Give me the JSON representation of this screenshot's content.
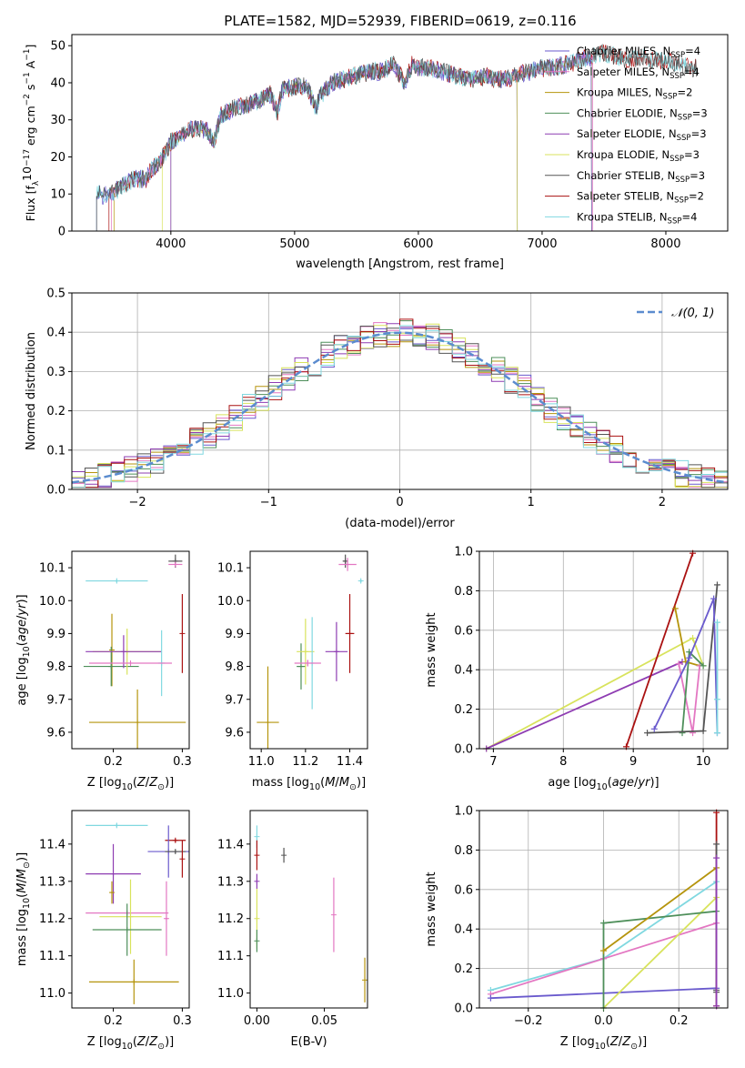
{
  "figure": {
    "title": "PLATE=1582, MJD=52939, FIBERID=0619, z=0.116"
  },
  "colors": {
    "Chabrier MILES": "#6a5acd",
    "Salpeter MILES": "#e377c2",
    "Kroupa MILES": "#b5940c",
    "Chabrier ELODIE": "#4e8f5a",
    "Salpeter ELODIE": "#8e3cb2",
    "Kroupa ELODIE": "#d8e35c",
    "Chabrier STELIB": "#555555",
    "Salpeter STELIB": "#aa1111",
    "Kroupa STELIB": "#80d8e0",
    "gauss": "#5b8ccf"
  },
  "chart_data": [
    {
      "id": "spectrum",
      "type": "line",
      "xlabel": "wavelength [Angstrom, rest frame]",
      "ylabel": "Flux [f_λ10^-17 erg cm^-2 s^-1 A^-1]",
      "xlim": [
        3200,
        8500
      ],
      "ylim": [
        0,
        53
      ],
      "xticks": [
        4000,
        5000,
        6000,
        7000,
        8000
      ],
      "yticks": [
        0,
        10,
        20,
        30,
        40,
        50
      ],
      "legend_position": "right",
      "legend": [
        {
          "label": "Chabrier MILES, N",
          "sub": "SSP",
          "suffix": "=4"
        },
        {
          "label": "Salpeter MILES, N",
          "sub": "SSP",
          "suffix": "=4"
        },
        {
          "label": "Kroupa MILES, N",
          "sub": "SSP",
          "suffix": "=2"
        },
        {
          "label": "Chabrier ELODIE, N",
          "sub": "SSP",
          "suffix": "=3"
        },
        {
          "label": "Salpeter ELODIE, N",
          "sub": "SSP",
          "suffix": "=3"
        },
        {
          "label": "Kroupa ELODIE, N",
          "sub": "SSP",
          "suffix": "=3"
        },
        {
          "label": "Chabrier STELIB, N",
          "sub": "SSP",
          "suffix": "=3"
        },
        {
          "label": "Salpeter STELIB, N",
          "sub": "SSP",
          "suffix": "=2"
        },
        {
          "label": "Kroupa STELIB, N",
          "sub": "SSP",
          "suffix": "=4"
        }
      ],
      "anchors": [
        [
          3400,
          10
        ],
        [
          3500,
          9.5
        ],
        [
          3600,
          12
        ],
        [
          3700,
          14
        ],
        [
          3800,
          14
        ],
        [
          3850,
          17
        ],
        [
          3900,
          18
        ],
        [
          3950,
          21
        ],
        [
          4000,
          24
        ],
        [
          4100,
          26
        ],
        [
          4200,
          28
        ],
        [
          4300,
          27
        ],
        [
          4350,
          24
        ],
        [
          4400,
          31
        ],
        [
          4500,
          33
        ],
        [
          4600,
          34
        ],
        [
          4700,
          35
        ],
        [
          4800,
          37
        ],
        [
          4860,
          32
        ],
        [
          4900,
          38
        ],
        [
          5000,
          39
        ],
        [
          5100,
          39
        ],
        [
          5175,
          33
        ],
        [
          5200,
          36
        ],
        [
          5300,
          40
        ],
        [
          5400,
          41
        ],
        [
          5500,
          42
        ],
        [
          5600,
          43
        ],
        [
          5700,
          43
        ],
        [
          5800,
          45
        ],
        [
          5890,
          40
        ],
        [
          5950,
          45
        ],
        [
          6000,
          44
        ],
        [
          6100,
          44
        ],
        [
          6200,
          43
        ],
        [
          6300,
          42
        ],
        [
          6400,
          41
        ],
        [
          6500,
          41
        ],
        [
          6560,
          42
        ],
        [
          6600,
          41
        ],
        [
          6700,
          41
        ],
        [
          6800,
          42
        ],
        [
          6900,
          43
        ],
        [
          7000,
          44
        ],
        [
          7100,
          44
        ],
        [
          7200,
          45
        ],
        [
          7300,
          46
        ],
        [
          7400,
          47
        ],
        [
          7500,
          48
        ],
        [
          7600,
          47
        ],
        [
          7700,
          46
        ],
        [
          7800,
          47
        ],
        [
          7900,
          46
        ],
        [
          8000,
          46
        ],
        [
          8100,
          45
        ],
        [
          8200,
          44
        ]
      ],
      "series_ranges": {
        "Chabrier MILES": [
          3400,
          7400
        ],
        "Salpeter MILES": [
          3520,
          7410
        ],
        "Kroupa MILES": [
          3540,
          7400
        ],
        "Chabrier ELODIE": [
          4000,
          6800
        ],
        "Salpeter ELODIE": [
          4000,
          6800
        ],
        "Kroupa ELODIE": [
          3930,
          6800
        ],
        "Chabrier STELIB": [
          3400,
          8250
        ],
        "Salpeter STELIB": [
          3500,
          8250
        ],
        "Kroupa STELIB": [
          3400,
          8250
        ]
      }
    },
    {
      "id": "residuals",
      "type": "line",
      "xlabel": "(data-model)/error",
      "ylabel": "Normed distribution",
      "xlim": [
        -2.5,
        2.5
      ],
      "ylim": [
        0,
        0.5
      ],
      "xticks": [
        -2,
        -1,
        0,
        1,
        2
      ],
      "xticklabels": [
        "−2",
        "−1",
        "0",
        "1",
        "2"
      ],
      "yticks": [
        0.0,
        0.1,
        0.2,
        0.3,
        0.4,
        0.5
      ],
      "yticklabels": [
        "0.0",
        "0.1",
        "0.2",
        "0.3",
        "0.4",
        "0.5"
      ],
      "grid": true,
      "legend_position": "top-right",
      "legend": "𝒩(0, 1)",
      "bin_width": 0.1
    },
    {
      "id": "age-vs-Z",
      "type": "scatter",
      "xlabel": "Z [log10(Z/Z⊙)]",
      "ylabel": "age  [log10(age/yr)]",
      "xlim": [
        0.14,
        0.31
      ],
      "ylim": [
        9.55,
        10.15
      ],
      "xticks": [
        0.2,
        0.3
      ],
      "xticklabels": [
        "0.2",
        "0.3"
      ],
      "yticks": [
        9.6,
        9.7,
        9.8,
        9.9,
        10.0,
        10.1
      ],
      "yticklabels": [
        "9.6",
        "9.7",
        "9.8",
        "9.9",
        "10.0",
        "10.1"
      ],
      "points": [
        {
          "series": "Kroupa STELIB",
          "x": 0.205,
          "xerr": 0.045,
          "y": 10.06,
          "yerr": 0.005
        },
        {
          "series": "Chabrier STELIB",
          "x": 0.29,
          "xerr": 0.01,
          "y": 10.12,
          "yerr": 0.02
        },
        {
          "series": "Salpeter MILES",
          "x": 0.29,
          "xerr": 0.01,
          "y": 10.11,
          "yerr": 0.005
        },
        {
          "series": "Kroupa MILES",
          "x": 0.198,
          "xerr": 0.002,
          "y": 9.85,
          "yerr": 0.11
        },
        {
          "series": "Chabrier ELODIE",
          "x": 0.197,
          "xerr": 0.04,
          "y": 9.8,
          "yerr": 0.06
        },
        {
          "series": "Kroupa ELODIE",
          "x": 0.22,
          "xerr": 0.05,
          "y": 9.845,
          "yerr": 0.07
        },
        {
          "series": "Salpeter ELODIE",
          "x": 0.215,
          "xerr": 0.055,
          "y": 9.845,
          "yerr": 0.05
        },
        {
          "series": "Salpeter STELIB",
          "x": 0.3,
          "xerr": 0.0,
          "y": 9.9,
          "yerr": 0.12
        },
        {
          "series": "Kroupa STELIB",
          "x": 0.27,
          "xerr": 0.005,
          "y": 9.81,
          "yerr": 0.1
        },
        {
          "series": "Salpeter MILES",
          "x": 0.225,
          "xerr": 0.06,
          "y": 9.81,
          "yerr": 0.005
        },
        {
          "series": "Kroupa MILES",
          "x": 0.235,
          "xerr": 0.07,
          "y": 9.63,
          "yerr": 0.1
        }
      ]
    },
    {
      "id": "age-vs-mass",
      "type": "scatter",
      "xlabel": "mass [log10(M/M⊙)]",
      "ylabel": "",
      "xlim": [
        10.95,
        11.48
      ],
      "ylim": [
        9.55,
        10.15
      ],
      "xticks": [
        11.0,
        11.2,
        11.4
      ],
      "xticklabels": [
        "11.0",
        "11.2",
        "11.4"
      ],
      "yticks": [
        9.6,
        9.7,
        9.8,
        9.9,
        10.0,
        10.1
      ],
      "yticklabels": [
        "9.6",
        "9.7",
        "9.8",
        "9.9",
        "10.0",
        "10.1"
      ],
      "points": [
        {
          "series": "Kroupa STELIB",
          "x": 11.45,
          "xerr": 0.005,
          "y": 10.06,
          "yerr": 0.005
        },
        {
          "series": "Chabrier STELIB",
          "x": 11.38,
          "xerr": 0.01,
          "y": 10.12,
          "yerr": 0.02
        },
        {
          "series": "Salpeter MILES",
          "x": 11.39,
          "xerr": 0.04,
          "y": 10.11,
          "yerr": 0.02
        },
        {
          "series": "Chabrier ELODIE",
          "x": 11.18,
          "xerr": 0.02,
          "y": 9.8,
          "yerr": 0.07
        },
        {
          "series": "Kroupa ELODIE",
          "x": 11.2,
          "xerr": 0.04,
          "y": 9.845,
          "yerr": 0.1
        },
        {
          "series": "Salpeter ELODIE",
          "x": 11.34,
          "xerr": 0.05,
          "y": 9.845,
          "yerr": 0.09
        },
        {
          "series": "Salpeter STELIB",
          "x": 11.4,
          "xerr": 0.02,
          "y": 9.9,
          "yerr": 0.12
        },
        {
          "series": "Kroupa STELIB",
          "x": 11.23,
          "xerr": 0.005,
          "y": 9.81,
          "yerr": 0.14
        },
        {
          "series": "Salpeter MILES",
          "x": 11.21,
          "xerr": 0.06,
          "y": 9.81,
          "yerr": 0.01
        },
        {
          "series": "Kroupa MILES",
          "x": 11.03,
          "xerr": 0.05,
          "y": 9.63,
          "yerr": 0.17
        }
      ]
    },
    {
      "id": "massweight-vs-age",
      "type": "line",
      "xlabel": "age  [log10(age/yr)]",
      "ylabel": "mass weight",
      "xlim": [
        6.8,
        10.35
      ],
      "ylim": [
        0,
        1
      ],
      "xticks": [
        7,
        8,
        9,
        10
      ],
      "xticklabels": [
        "7",
        "8",
        "9",
        "10"
      ],
      "yticks": [
        0.0,
        0.2,
        0.4,
        0.6,
        0.8,
        1.0
      ],
      "yticklabels": [
        "0.0",
        "0.2",
        "0.4",
        "0.6",
        "0.8",
        "1.0"
      ],
      "grid": true,
      "series": [
        {
          "name": "Kroupa ELODIE",
          "x": [
            6.9,
            9.85,
            10.0
          ],
          "y": [
            0.0,
            0.56,
            0.42
          ]
        },
        {
          "name": "Salpeter ELODIE",
          "x": [
            6.9,
            9.7
          ],
          "y": [
            0.0,
            0.44
          ]
        },
        {
          "name": "Salpeter STELIB",
          "x": [
            8.9,
            9.85
          ],
          "y": [
            0.01,
            0.99
          ]
        },
        {
          "name": "Kroupa MILES",
          "x": [
            9.6,
            9.75,
            9.95
          ],
          "y": [
            0.71,
            0.44,
            0.42
          ]
        },
        {
          "name": "Salpeter MILES",
          "x": [
            9.65,
            9.85,
            9.95
          ],
          "y": [
            0.43,
            0.08,
            0.42
          ]
        },
        {
          "name": "Chabrier ELODIE",
          "x": [
            9.7,
            9.8,
            10.0
          ],
          "y": [
            0.08,
            0.49,
            0.42
          ]
        },
        {
          "name": "Chabrier STELIB",
          "x": [
            9.2,
            10.0,
            10.2
          ],
          "y": [
            0.08,
            0.09,
            0.83
          ]
        },
        {
          "name": "Chabrier MILES",
          "x": [
            9.3,
            9.8,
            10.15,
            10.2
          ],
          "y": [
            0.1,
            0.46,
            0.76,
            0.08
          ]
        },
        {
          "name": "Kroupa STELIB",
          "x": [
            10.2,
            10.2,
            10.2
          ],
          "y": [
            0.64,
            0.25,
            0.08
          ]
        }
      ]
    },
    {
      "id": "mass-vs-Z",
      "type": "scatter",
      "xlabel": "Z [log10(Z/Z⊙)]",
      "ylabel": "mass [log10(M/M⊙)]",
      "xlim": [
        0.14,
        0.31
      ],
      "ylim": [
        10.96,
        11.49
      ],
      "xticks": [
        0.2,
        0.3
      ],
      "xticklabels": [
        "0.2",
        "0.3"
      ],
      "yticks": [
        11.0,
        11.1,
        11.2,
        11.3,
        11.4
      ],
      "yticklabels": [
        "11.0",
        "11.1",
        "11.2",
        "11.3",
        "11.4"
      ],
      "points": [
        {
          "series": "Kroupa STELIB",
          "x": 0.205,
          "xerr": 0.045,
          "y": 11.45,
          "yerr": 0.005
        },
        {
          "series": "Salpeter STELIB",
          "x": 0.29,
          "xerr": 0.015,
          "y": 11.41,
          "yerr": 0.005
        },
        {
          "series": "Chabrier MILES",
          "x": 0.28,
          "xerr": 0.03,
          "y": 11.38,
          "yerr": 0.07
        },
        {
          "series": "Chabrier STELIB",
          "x": 0.29,
          "xerr": 0.015,
          "y": 11.38,
          "yerr": 0.005
        },
        {
          "series": "Salpeter ELODIE",
          "x": 0.2,
          "xerr": 0.04,
          "y": 11.32,
          "yerr": 0.08
        },
        {
          "series": "Kroupa MILES",
          "x": 0.198,
          "xerr": 0.002,
          "y": 11.27,
          "yerr": 0.03
        },
        {
          "series": "Salpeter MILES",
          "x": 0.22,
          "xerr": 0.06,
          "y": 11.215,
          "yerr": 0.005
        },
        {
          "series": "Kroupa ELODIE",
          "x": 0.225,
          "xerr": 0.045,
          "y": 11.205,
          "yerr": 0.1
        },
        {
          "series": "Chabrier ELODIE",
          "x": 0.22,
          "xerr": 0.05,
          "y": 11.17,
          "yerr": 0.07
        },
        {
          "series": "Salpeter STELIB",
          "x": 0.3,
          "xerr": 0.0,
          "y": 11.36,
          "yerr": 0.05
        },
        {
          "series": "Salpeter MILES",
          "x": 0.277,
          "xerr": 0.002,
          "y": 11.2,
          "yerr": 0.1
        },
        {
          "series": "Kroupa MILES",
          "x": 0.23,
          "xerr": 0.065,
          "y": 11.03,
          "yerr": 0.06
        }
      ]
    },
    {
      "id": "mass-vs-EBV",
      "type": "scatter",
      "xlabel": "E(B-V)",
      "ylabel": "",
      "xlim": [
        -0.005,
        0.082
      ],
      "ylim": [
        10.96,
        11.49
      ],
      "xticks": [
        0.0,
        0.05
      ],
      "xticklabels": [
        "0.00",
        "0.05"
      ],
      "yticks": [
        11.0,
        11.1,
        11.2,
        11.3,
        11.4
      ],
      "yticklabels": [
        "11.0",
        "11.1",
        "11.2",
        "11.3",
        "11.4"
      ],
      "points": [
        {
          "series": "Kroupa STELIB",
          "x": 0.0,
          "xerr": 0.0,
          "y": 11.42,
          "yerr": 0.03
        },
        {
          "series": "Salpeter STELIB",
          "x": 0.0,
          "xerr": 0.0,
          "y": 11.37,
          "yerr": 0.04
        },
        {
          "series": "Salpeter ELODIE",
          "x": 0.0,
          "xerr": 0.0,
          "y": 11.3,
          "yerr": 0.02
        },
        {
          "series": "Kroupa ELODIE",
          "x": 0.0,
          "xerr": 0.0,
          "y": 11.2,
          "yerr": 0.08
        },
        {
          "series": "Chabrier ELODIE",
          "x": 0.0,
          "xerr": 0.0,
          "y": 11.14,
          "yerr": 0.03
        },
        {
          "series": "Chabrier STELIB",
          "x": 0.02,
          "xerr": 0.0,
          "y": 11.37,
          "yerr": 0.02
        },
        {
          "series": "Salpeter MILES",
          "x": 0.057,
          "xerr": 0.0,
          "y": 11.21,
          "yerr": 0.1
        },
        {
          "series": "Kroupa MILES",
          "x": 0.08,
          "xerr": 0.0,
          "y": 11.035,
          "yerr": 0.06
        }
      ]
    },
    {
      "id": "massweight-vs-Z",
      "type": "line",
      "xlabel": "Z [log10(Z/Z⊙)]",
      "ylabel": "mass weight",
      "xlim": [
        -0.33,
        0.33
      ],
      "ylim": [
        0,
        1
      ],
      "xticks": [
        -0.2,
        0.0,
        0.2
      ],
      "xticklabels": [
        "−0.2",
        "0.0",
        "0.2"
      ],
      "yticks": [
        0.0,
        0.2,
        0.4,
        0.6,
        0.8,
        1.0
      ],
      "yticklabels": [
        "0.0",
        "0.2",
        "0.4",
        "0.6",
        "0.8",
        "1.0"
      ],
      "grid": true,
      "series": [
        {
          "name": "Kroupa STELIB",
          "x": [
            -0.3,
            0.0,
            0.3
          ],
          "y": [
            0.09,
            0.25,
            0.64
          ]
        },
        {
          "name": "Salpeter MILES",
          "x": [
            -0.3,
            0.0,
            0.3
          ],
          "y": [
            0.07,
            0.25,
            0.43
          ]
        },
        {
          "name": "Chabrier MILES",
          "x": [
            -0.3,
            0.3
          ],
          "y": [
            0.05,
            0.1
          ]
        },
        {
          "name": "Kroupa ELODIE",
          "x": [
            0.0,
            0.3
          ],
          "y": [
            0.0,
            0.56
          ]
        },
        {
          "name": "Chabrier ELODIE",
          "x": [
            0.0,
            0.0,
            0.3
          ],
          "y": [
            0.0,
            0.43,
            0.49
          ]
        },
        {
          "name": "Kroupa MILES",
          "x": [
            0.0,
            0.3
          ],
          "y": [
            0.29,
            0.71
          ]
        },
        {
          "name": "Salpeter STELIB",
          "x": [
            0.3,
            0.3
          ],
          "y": [
            0.01,
            0.99
          ]
        },
        {
          "name": "Chabrier STELIB",
          "x": [
            0.3,
            0.3,
            0.3
          ],
          "y": [
            0.08,
            0.83,
            0.09
          ]
        },
        {
          "name": "Salpeter ELODIE",
          "x": [
            0.3,
            0.3
          ],
          "y": [
            0.01,
            0.76
          ]
        }
      ]
    }
  ]
}
